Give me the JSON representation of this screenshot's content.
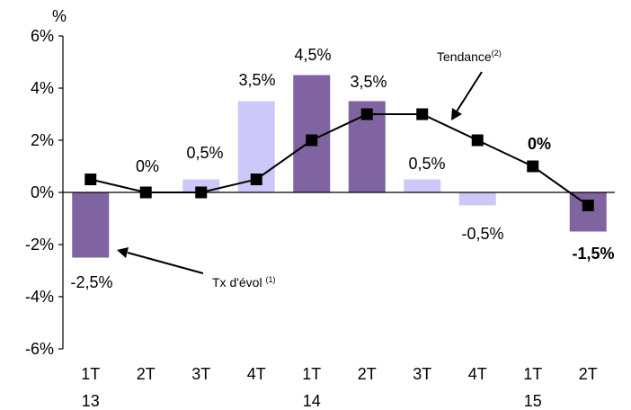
{
  "chart_data": {
    "type": "bar",
    "unit_label": "%",
    "categories": [
      {
        "q": "1T",
        "y": "13"
      },
      {
        "q": "2T",
        "y": ""
      },
      {
        "q": "3T",
        "y": ""
      },
      {
        "q": "4T",
        "y": ""
      },
      {
        "q": "1T",
        "y": "14"
      },
      {
        "q": "2T",
        "y": ""
      },
      {
        "q": "3T",
        "y": ""
      },
      {
        "q": "4T",
        "y": ""
      },
      {
        "q": "1T",
        "y": "15"
      },
      {
        "q": "2T",
        "y": ""
      }
    ],
    "ylim": [
      -6,
      6
    ],
    "yticks": [
      -6,
      -4,
      -2,
      0,
      2,
      4,
      6
    ],
    "ytick_labels": [
      "-6%",
      "-4%",
      "-2%",
      "0%",
      "2%",
      "4%",
      "6%"
    ],
    "series": [
      {
        "kind": "bar",
        "values": [
          -2.5,
          0,
          0.5,
          3.5,
          4.5,
          3.5,
          0.5,
          -0.5,
          0,
          -1.5
        ],
        "bar_styles": [
          "dark",
          "dark",
          "light",
          "light",
          "dark",
          "dark",
          "light",
          "light",
          "dark",
          "dark"
        ],
        "labels": [
          "-2,5%",
          "0%",
          "0,5%",
          "3,5%",
          "4,5%",
          "3,5%",
          "0,5%",
          "-0,5%",
          "0%",
          "-1,5%"
        ],
        "bold_labels": [
          8,
          9
        ]
      },
      {
        "kind": "line",
        "values": [
          0.5,
          0,
          0,
          0.5,
          2,
          3,
          3,
          2,
          1,
          -0.5
        ]
      }
    ],
    "annotations": {
      "bar_series": {
        "text": "Tx d'évol",
        "sup": "(1)"
      },
      "trend_series": {
        "text": "Tendance",
        "sup": "(2)"
      }
    },
    "colors": {
      "dark": "#8064a2",
      "light": "#ccc8f8",
      "line": "#000000"
    }
  }
}
